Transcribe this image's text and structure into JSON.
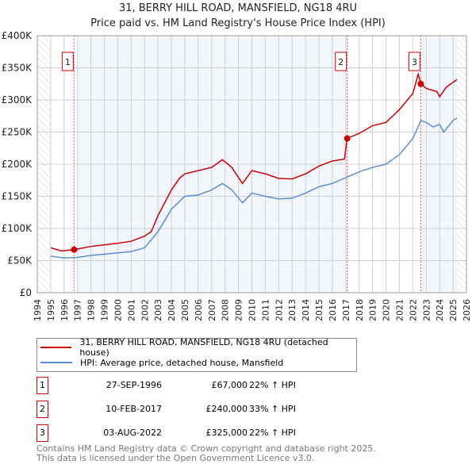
{
  "title": "31, BERRY HILL ROAD, MANSFIELD, NG18 4RU",
  "subtitle": "Price paid vs. HM Land Registry's House Price Index (HPI)",
  "chart_data": {
    "type": "line",
    "title": "31, BERRY HILL ROAD, MANSFIELD, NG18 4RU",
    "subtitle": "Price paid vs. HM Land Registry's House Price Index (HPI)",
    "xlim": [
      1994,
      2026
    ],
    "ylim": [
      0,
      400000
    ],
    "xticks": [
      "1994",
      "1995",
      "1996",
      "1997",
      "1998",
      "1999",
      "2000",
      "2001",
      "2002",
      "2003",
      "2004",
      "2005",
      "2006",
      "2007",
      "2008",
      "2009",
      "2010",
      "2011",
      "2012",
      "2013",
      "2014",
      "2015",
      "2016",
      "2017",
      "2018",
      "2019",
      "2020",
      "2021",
      "2022",
      "2023",
      "2024",
      "2025",
      "2026"
    ],
    "yticks": [
      {
        "v": 0,
        "label": "£0"
      },
      {
        "v": 50000,
        "label": "£50K"
      },
      {
        "v": 100000,
        "label": "£100K"
      },
      {
        "v": 150000,
        "label": "£150K"
      },
      {
        "v": 200000,
        "label": "£200K"
      },
      {
        "v": 250000,
        "label": "£250K"
      },
      {
        "v": 300000,
        "label": "£300K"
      },
      {
        "v": 350000,
        "label": "£350K"
      },
      {
        "v": 400000,
        "label": "£400K"
      }
    ],
    "grid": true,
    "series": [
      {
        "name": "31, BERRY HILL ROAD, MANSFIELD, NG18 4RU (detached house)",
        "color": "#cc0000",
        "x": [
          1995,
          1995.8,
          1996.75,
          1998,
          2000,
          2001,
          2002,
          2002.5,
          2003,
          2004,
          2004.6,
          2005,
          2006,
          2007,
          2007.8,
          2008.5,
          2009.3,
          2010,
          2011,
          2012,
          2013,
          2014,
          2015,
          2016,
          2016.9,
          2017.1,
          2018,
          2019,
          2020,
          2021,
          2022,
          2022.4,
          2022.6,
          2023,
          2023.8,
          2024,
          2024.5,
          2025.3
        ],
        "y": [
          70000,
          65000,
          67000,
          72000,
          77000,
          80000,
          88000,
          95000,
          120000,
          160000,
          178000,
          185000,
          190000,
          195000,
          207000,
          195000,
          170000,
          190000,
          185000,
          178000,
          177000,
          185000,
          197000,
          205000,
          208000,
          240000,
          248000,
          260000,
          265000,
          285000,
          310000,
          340000,
          325000,
          318000,
          313000,
          305000,
          320000,
          332000
        ]
      },
      {
        "name": "HPI: Average price, detached house, Mansfield",
        "color": "#5b8fd4",
        "x": [
          1995,
          1996,
          1997,
          1998,
          2000,
          2001,
          2002,
          2003,
          2004,
          2005,
          2006,
          2007,
          2007.8,
          2008.5,
          2009.3,
          2010,
          2011,
          2012,
          2013,
          2014,
          2015,
          2016,
          2017.1,
          2018,
          2019,
          2020,
          2021,
          2022,
          2022.6,
          2023,
          2023.5,
          2024,
          2024.3,
          2025,
          2025.3
        ],
        "y": [
          57000,
          54000,
          55000,
          58000,
          62000,
          64000,
          70000,
          95000,
          130000,
          150000,
          152000,
          160000,
          170000,
          160000,
          140000,
          155000,
          150000,
          146000,
          147000,
          155000,
          165000,
          170000,
          180000,
          188000,
          195000,
          200000,
          215000,
          240000,
          268000,
          265000,
          258000,
          262000,
          250000,
          268000,
          272000
        ]
      }
    ],
    "sales": [
      {
        "label": "1",
        "x": 1996.74,
        "y": 67000,
        "date": "27-SEP-1996",
        "price": "£67,000",
        "hpi": "22% ↑ HPI"
      },
      {
        "label": "2",
        "x": 2017.11,
        "y": 240000,
        "date": "10-FEB-2017",
        "price": "£240,000",
        "hpi": "33% ↑ HPI"
      },
      {
        "label": "3",
        "x": 2022.59,
        "y": 325000,
        "date": "03-AUG-2022",
        "price": "£325,000",
        "hpi": "22% ↑ HPI"
      }
    ]
  },
  "legend": [
    "31, BERRY HILL ROAD, MANSFIELD, NG18 4RU (detached house)",
    "HPI: Average price, detached house, Mansfield"
  ],
  "footer": [
    "Contains HM Land Registry data © Crown copyright and database right 2025.",
    "This data is licensed under the Open Government Licence v3.0."
  ]
}
